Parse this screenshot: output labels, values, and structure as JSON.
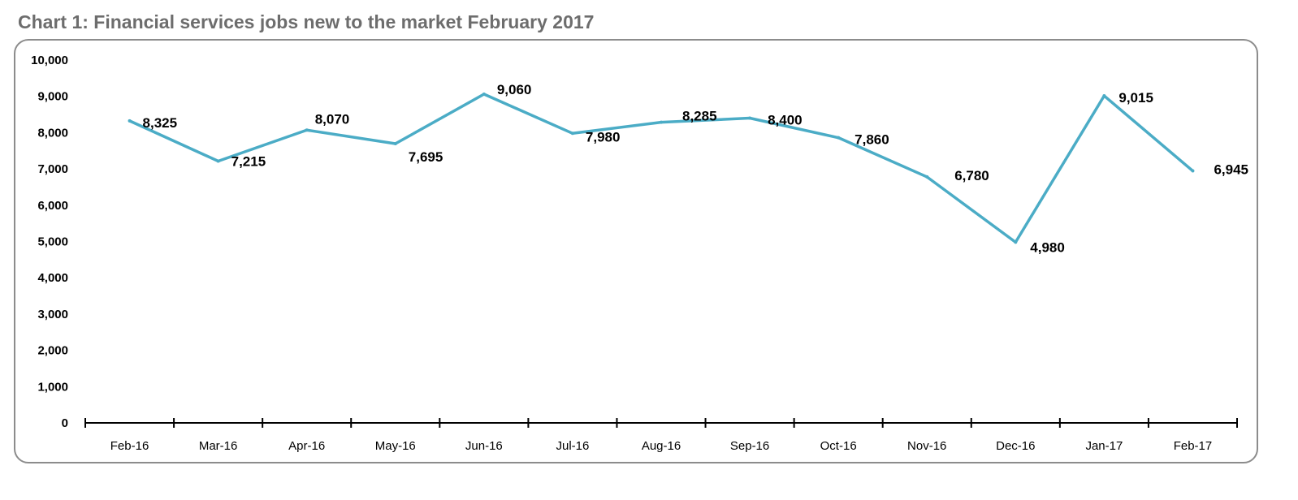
{
  "chart_data": {
    "type": "line",
    "title": "Chart 1: Financial services jobs new to the market February 2017",
    "xlabel": "",
    "ylabel": "",
    "categories": [
      "Feb-16",
      "Mar-16",
      "Apr-16",
      "May-16",
      "Jun-16",
      "Jul-16",
      "Aug-16",
      "Sep-16",
      "Oct-16",
      "Nov-16",
      "Dec-16",
      "Jan-17",
      "Feb-17"
    ],
    "series": [
      {
        "name": "Financial services jobs",
        "color": "#4bacc6",
        "values": [
          8325,
          7215,
          8070,
          7695,
          9060,
          7980,
          8285,
          8400,
          7860,
          6780,
          4980,
          9015,
          6945
        ]
      }
    ],
    "data_labels": [
      "8,325",
      "7,215",
      "8,070",
      "7,695",
      "9,060",
      "7,980",
      "8,285",
      "8,400",
      "7,860",
      "6,780",
      "4,980",
      "9,015",
      "6,945"
    ],
    "ylim": [
      0,
      10000
    ],
    "yticks": [
      "0",
      "1,000",
      "2,000",
      "3,000",
      "4,000",
      "5,000",
      "6,000",
      "7,000",
      "8,000",
      "9,000",
      "10,000"
    ],
    "grid": false,
    "legend": "none"
  }
}
